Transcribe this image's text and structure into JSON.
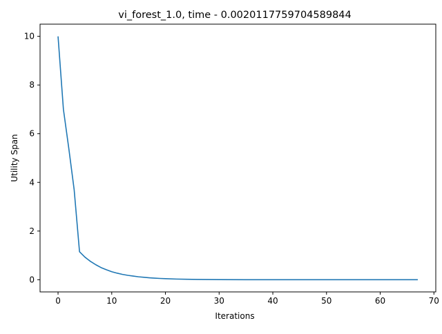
{
  "chart_data": {
    "type": "line",
    "title": "vi_forest_1.0, time - 0.0020117759704589844",
    "xlabel": "Iterations",
    "ylabel": "Utility Span",
    "xlim": [
      -3.35,
      70.35
    ],
    "ylim": [
      -0.5,
      10.5
    ],
    "xticks": [
      0,
      10,
      20,
      30,
      40,
      50,
      60,
      70
    ],
    "yticks": [
      0,
      2,
      4,
      6,
      8,
      10
    ],
    "grid": false,
    "legend": "none",
    "colors": {
      "series": "#1f77b4",
      "axes": "#000000",
      "background": "#ffffff"
    },
    "series": [
      {
        "x": [
          0,
          1,
          2,
          3,
          4,
          5,
          6,
          7,
          8,
          9,
          10,
          11,
          12,
          13,
          14,
          15,
          16,
          17,
          18,
          19,
          20,
          22,
          24,
          26,
          28,
          30,
          35,
          40,
          45,
          50,
          55,
          60,
          65,
          67
        ],
        "values": [
          10.0,
          7.0,
          5.4,
          3.7,
          1.15,
          0.93,
          0.76,
          0.62,
          0.5,
          0.41,
          0.33,
          0.27,
          0.22,
          0.18,
          0.15,
          0.12,
          0.1,
          0.08,
          0.065,
          0.053,
          0.043,
          0.028,
          0.019,
          0.012,
          0.008,
          0.005,
          0.002,
          0.001,
          0.0005,
          0.0002,
          0.0001,
          0.0,
          0.0,
          0.0
        ]
      }
    ]
  }
}
